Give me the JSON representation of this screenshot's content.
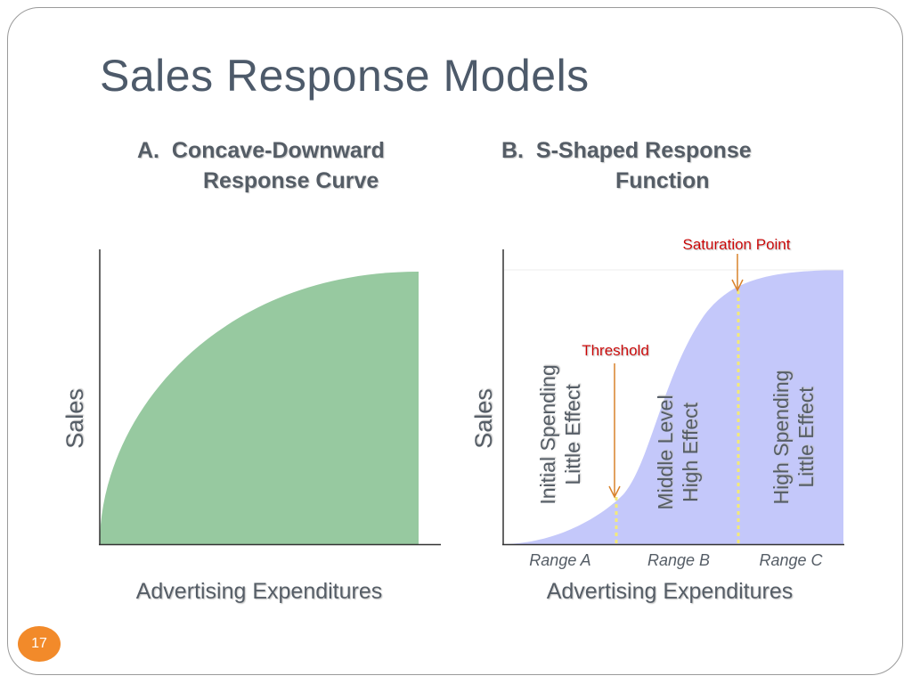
{
  "slide": {
    "title": "Sales Response Models",
    "page_number": "17"
  },
  "panel_a": {
    "marker": "A.",
    "heading_line1": "Concave-Downward",
    "heading_line2": "Response Curve",
    "y_label": "Sales",
    "x_label": "Advertising Expenditures",
    "fill_color": "#97c9a0"
  },
  "panel_b": {
    "marker": "B.",
    "heading_line1": "S-Shaped Response",
    "heading_line2": "Function",
    "y_label": "Sales",
    "x_label": "Advertising Expenditures",
    "fill_color": "#c4c8fa",
    "threshold_label": "Threshold",
    "saturation_label": "Saturation Point",
    "annotation_color": "#cc0000",
    "arrow_color": "#d9822b",
    "divider_color": "#f3ea7a",
    "ranges": [
      "Range A",
      "Range B",
      "Range C"
    ],
    "zone_a_line1": "Initial Spending",
    "zone_a_line2": "Little Effect",
    "zone_b_line1": "Middle Level",
    "zone_b_line2": "High Effect",
    "zone_c_line1": "High Spending",
    "zone_c_line2": "Little Effect"
  }
}
